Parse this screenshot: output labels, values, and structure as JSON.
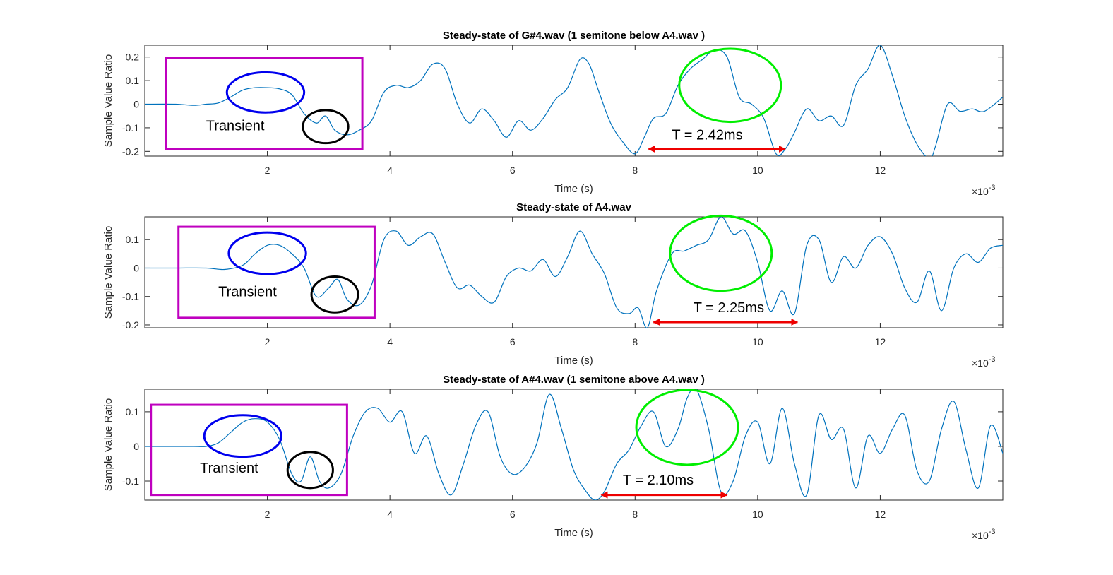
{
  "colors": {
    "series": "#0072BD",
    "transient_box": "#BF00BF",
    "onset_ellipse": "#0000EE",
    "dip_ellipse": "#000000",
    "peak_ellipse": "#00EE00",
    "period_arrow": "#EE0000"
  },
  "chart_data": [
    {
      "type": "line",
      "title": "Steady-state of G#4.wav (1 semitone below A4.wav )",
      "xlabel": "Time (s)",
      "ylabel": "Sample Value Ratio",
      "x_exponent_label": "×10",
      "x_exponent_power": "-3",
      "xlim": [
        0,
        14
      ],
      "ylim": [
        -0.22,
        0.25
      ],
      "xticks": [
        2,
        4,
        6,
        8,
        10,
        12
      ],
      "xtick_labels": [
        "2",
        "4",
        "6",
        "8",
        "10",
        "12"
      ],
      "yticks": [
        -0.2,
        -0.1,
        0,
        0.1,
        0.2
      ],
      "ytick_labels": [
        "-0.2",
        "-0.1",
        "0",
        "0.1",
        "0.2"
      ],
      "grid": false,
      "series": [
        {
          "x": [
            0,
            0.5,
            0.8,
            1.0,
            1.2,
            1.4,
            1.6,
            1.8,
            2.0,
            2.2,
            2.4,
            2.6,
            2.8,
            2.95,
            3.1,
            3.3,
            3.5,
            3.7,
            3.9,
            4.1,
            4.3,
            4.5,
            4.7,
            4.9,
            5.1,
            5.3,
            5.5,
            5.7,
            5.9,
            6.1,
            6.3,
            6.5,
            6.7,
            6.9,
            7.1,
            7.25,
            7.4,
            7.6,
            7.8,
            8.0,
            8.15,
            8.3,
            8.5,
            8.7,
            8.9,
            9.1,
            9.3,
            9.5,
            9.7,
            9.9,
            10.1,
            10.3,
            10.45,
            10.6,
            10.8,
            11.0,
            11.2,
            11.4,
            11.6,
            11.8,
            12.0,
            12.2,
            12.4,
            12.6,
            12.8,
            12.9,
            13.1,
            13.3,
            13.5,
            13.7,
            14.0
          ],
          "y": [
            0,
            0,
            -0.005,
            0.0,
            0.005,
            0.03,
            0.06,
            0.07,
            0.07,
            0.065,
            0.04,
            -0.04,
            -0.08,
            -0.05,
            -0.11,
            -0.13,
            -0.11,
            -0.07,
            0.05,
            0.08,
            0.07,
            0.1,
            0.17,
            0.15,
            0.0,
            -0.08,
            -0.02,
            -0.07,
            -0.14,
            -0.07,
            -0.11,
            -0.06,
            0.02,
            0.07,
            0.19,
            0.17,
            0.06,
            -0.08,
            -0.16,
            -0.21,
            -0.14,
            -0.06,
            -0.04,
            0.08,
            0.15,
            0.19,
            0.23,
            0.2,
            0.03,
            0.0,
            -0.06,
            -0.21,
            -0.19,
            -0.12,
            -0.02,
            -0.07,
            -0.05,
            -0.09,
            0.08,
            0.15,
            0.25,
            0.12,
            -0.05,
            -0.17,
            -0.23,
            -0.18,
            0.0,
            -0.03,
            -0.02,
            -0.03,
            0.03
          ]
        }
      ],
      "annotations": [
        {
          "kind": "box",
          "x0": 0.35,
          "x1": 3.55,
          "y0": -0.19,
          "y1": 0.195
        },
        {
          "kind": "ellipse",
          "cx": 1.97,
          "cy": 0.05,
          "rx": 0.63,
          "ry": 0.085,
          "role": "onset_ellipse"
        },
        {
          "kind": "ellipse",
          "cx": 2.95,
          "cy": -0.095,
          "rx": 0.37,
          "ry": 0.07,
          "role": "dip_ellipse"
        },
        {
          "kind": "ellipse",
          "cx": 9.55,
          "cy": 0.08,
          "rx": 0.83,
          "ry": 0.155,
          "role": "peak_ellipse"
        },
        {
          "kind": "text",
          "x": 1.0,
          "y": -0.11,
          "text": "Transient"
        },
        {
          "kind": "arrow",
          "x0": 8.22,
          "x1": 10.45,
          "y": -0.19
        },
        {
          "kind": "text",
          "x": 8.6,
          "y": -0.15,
          "text": "T = 2.42ms"
        }
      ]
    },
    {
      "type": "line",
      "title": "Steady-state of A4.wav",
      "xlabel": "Time (s)",
      "ylabel": "Sample Value Ratio",
      "x_exponent_label": "×10",
      "x_exponent_power": "-3",
      "xlim": [
        0,
        14
      ],
      "ylim": [
        -0.21,
        0.18
      ],
      "xticks": [
        2,
        4,
        6,
        8,
        10,
        12
      ],
      "xtick_labels": [
        "2",
        "4",
        "6",
        "8",
        "10",
        "12"
      ],
      "yticks": [
        -0.2,
        -0.1,
        0,
        0.1
      ],
      "ytick_labels": [
        "-0.2",
        "-0.1",
        "0",
        "0.1"
      ],
      "grid": false,
      "series": [
        {
          "x": [
            0,
            0.5,
            1.0,
            1.3,
            1.6,
            1.8,
            2.0,
            2.2,
            2.4,
            2.6,
            2.8,
            3.0,
            3.15,
            3.3,
            3.5,
            3.7,
            3.9,
            4.1,
            4.3,
            4.5,
            4.7,
            4.9,
            5.1,
            5.3,
            5.5,
            5.7,
            5.9,
            6.1,
            6.3,
            6.5,
            6.7,
            6.9,
            7.1,
            7.3,
            7.5,
            7.7,
            7.9,
            8.05,
            8.2,
            8.35,
            8.6,
            8.8,
            9.0,
            9.2,
            9.4,
            9.6,
            9.8,
            10.0,
            10.2,
            10.4,
            10.6,
            10.8,
            11.0,
            11.2,
            11.4,
            11.6,
            11.8,
            12.0,
            12.2,
            12.4,
            12.6,
            12.8,
            13.0,
            13.2,
            13.4,
            13.6,
            13.8,
            14.0
          ],
          "y": [
            0,
            0.0,
            0.0,
            -0.005,
            0.01,
            0.05,
            0.08,
            0.08,
            0.05,
            0.0,
            -0.1,
            -0.07,
            -0.04,
            -0.11,
            -0.13,
            -0.06,
            0.1,
            0.13,
            0.08,
            0.11,
            0.12,
            0.02,
            -0.07,
            -0.06,
            -0.1,
            -0.12,
            -0.03,
            0.0,
            -0.01,
            0.03,
            -0.03,
            0.04,
            0.13,
            0.05,
            -0.02,
            -0.14,
            -0.16,
            -0.14,
            -0.21,
            -0.08,
            0.05,
            0.06,
            0.08,
            0.1,
            0.18,
            0.12,
            0.13,
            0.02,
            -0.15,
            -0.08,
            -0.16,
            0.08,
            0.1,
            -0.05,
            0.04,
            0.0,
            0.08,
            0.11,
            0.05,
            -0.07,
            -0.12,
            -0.01,
            -0.15,
            0.0,
            0.05,
            0.02,
            0.07,
            0.08
          ]
        }
      ],
      "annotations": [
        {
          "kind": "box",
          "x0": 0.55,
          "x1": 3.75,
          "y0": -0.175,
          "y1": 0.145
        },
        {
          "kind": "ellipse",
          "cx": 2.0,
          "cy": 0.052,
          "rx": 0.63,
          "ry": 0.073,
          "role": "onset_ellipse"
        },
        {
          "kind": "ellipse",
          "cx": 3.1,
          "cy": -0.093,
          "rx": 0.38,
          "ry": 0.063,
          "role": "dip_ellipse"
        },
        {
          "kind": "ellipse",
          "cx": 9.4,
          "cy": 0.052,
          "rx": 0.83,
          "ry": 0.132,
          "role": "peak_ellipse"
        },
        {
          "kind": "text",
          "x": 1.2,
          "y": -0.1,
          "text": "Transient"
        },
        {
          "kind": "arrow",
          "x0": 8.3,
          "x1": 10.65,
          "y": -0.19
        },
        {
          "kind": "text",
          "x": 8.95,
          "y": -0.155,
          "text": "T = 2.25ms"
        }
      ]
    },
    {
      "type": "line",
      "title": "Steady-state of A#4.wav (1 semitone above A4.wav )",
      "xlabel": "Time (s)",
      "ylabel": "Sample Value Ratio",
      "x_exponent_label": "×10",
      "x_exponent_power": "-3",
      "xlim": [
        0,
        14
      ],
      "ylim": [
        -0.155,
        0.165
      ],
      "xticks": [
        2,
        4,
        6,
        8,
        10,
        12
      ],
      "xtick_labels": [
        "2",
        "4",
        "6",
        "8",
        "10",
        "12"
      ],
      "yticks": [
        -0.1,
        0,
        0.1
      ],
      "ytick_labels": [
        "-0.1",
        "0",
        "0.1"
      ],
      "grid": false,
      "series": [
        {
          "x": [
            0,
            0.5,
            0.8,
            1.0,
            1.2,
            1.4,
            1.6,
            1.8,
            2.0,
            2.2,
            2.4,
            2.55,
            2.7,
            2.85,
            3.0,
            3.2,
            3.4,
            3.6,
            3.8,
            4.0,
            4.2,
            4.4,
            4.6,
            4.8,
            5.0,
            5.2,
            5.4,
            5.6,
            5.8,
            6.0,
            6.2,
            6.4,
            6.6,
            6.8,
            7.0,
            7.2,
            7.35,
            7.5,
            7.7,
            7.9,
            8.1,
            8.3,
            8.5,
            8.7,
            8.85,
            9.0,
            9.2,
            9.4,
            9.6,
            9.8,
            10.0,
            10.2,
            10.4,
            10.6,
            10.8,
            11.0,
            11.2,
            11.4,
            11.6,
            11.8,
            12.0,
            12.2,
            12.4,
            12.6,
            12.8,
            13.0,
            13.2,
            13.4,
            13.6,
            13.8,
            14.0
          ],
          "y": [
            0,
            0.0,
            0.0,
            0.0,
            0.01,
            0.04,
            0.07,
            0.08,
            0.07,
            0.02,
            -0.08,
            -0.1,
            -0.03,
            -0.1,
            -0.12,
            -0.08,
            0.03,
            0.1,
            0.11,
            0.07,
            0.1,
            -0.02,
            0.03,
            -0.08,
            -0.14,
            -0.05,
            0.06,
            0.1,
            -0.03,
            -0.08,
            -0.06,
            0.01,
            0.15,
            0.05,
            -0.07,
            -0.13,
            -0.155,
            -0.13,
            -0.05,
            -0.01,
            0.06,
            0.1,
            0.0,
            0.05,
            0.14,
            0.165,
            0.05,
            -0.13,
            -0.1,
            0.03,
            0.07,
            -0.05,
            0.11,
            -0.05,
            -0.14,
            0.09,
            0.02,
            0.05,
            -0.12,
            0.03,
            -0.02,
            0.05,
            0.09,
            -0.07,
            -0.1,
            0.05,
            0.13,
            -0.01,
            -0.12,
            0.06,
            -0.02
          ]
        }
      ],
      "annotations": [
        {
          "kind": "box",
          "x0": 0.1,
          "x1": 3.3,
          "y0": -0.14,
          "y1": 0.12
        },
        {
          "kind": "ellipse",
          "cx": 1.6,
          "cy": 0.03,
          "rx": 0.63,
          "ry": 0.06,
          "role": "onset_ellipse"
        },
        {
          "kind": "ellipse",
          "cx": 2.7,
          "cy": -0.068,
          "rx": 0.37,
          "ry": 0.052,
          "role": "dip_ellipse"
        },
        {
          "kind": "ellipse",
          "cx": 8.85,
          "cy": 0.055,
          "rx": 0.83,
          "ry": 0.108,
          "role": "peak_ellipse"
        },
        {
          "kind": "text",
          "x": 0.9,
          "y": -0.075,
          "text": "Transient"
        },
        {
          "kind": "arrow",
          "x0": 7.45,
          "x1": 9.5,
          "y": -0.14
        },
        {
          "kind": "text",
          "x": 7.8,
          "y": -0.11,
          "text": "T = 2.10ms"
        }
      ]
    }
  ]
}
